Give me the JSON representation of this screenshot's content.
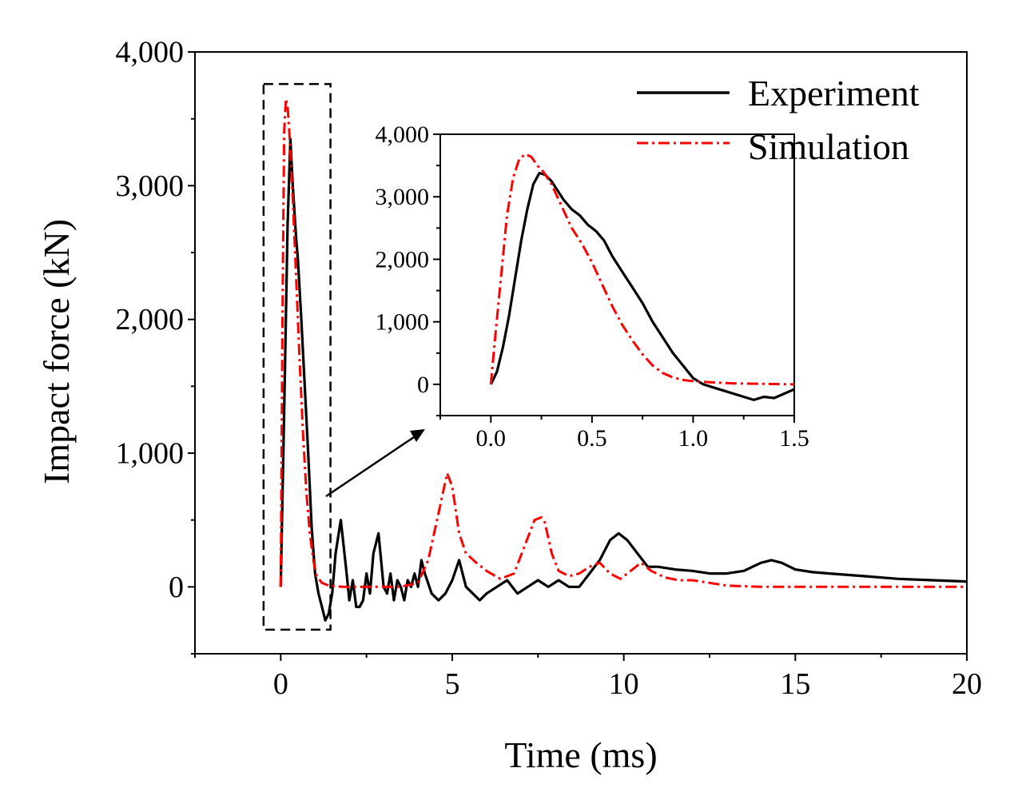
{
  "chart_data": {
    "type": "line",
    "title": "",
    "xlabel": "Time (ms)",
    "ylabel": "Impact force (kN)",
    "xlim": [
      -2.5,
      20
    ],
    "ylim": [
      -500,
      4000
    ],
    "x_ticks": [
      0,
      5,
      10,
      15,
      20
    ],
    "x_tick_labels": [
      "0",
      "5",
      "10",
      "15",
      "20"
    ],
    "y_ticks": [
      0,
      1000,
      2000,
      3000,
      4000
    ],
    "y_tick_labels": [
      "0",
      "1,000",
      "2,000",
      "3,000",
      "4,000"
    ],
    "legend": {
      "position": "top-right",
      "entries": [
        "Experiment",
        "Simulation"
      ]
    },
    "series": [
      {
        "name": "Experiment",
        "color": "#000000",
        "style": "solid",
        "x": [
          0,
          0.1,
          0.2,
          0.28,
          0.35,
          0.45,
          0.5,
          0.6,
          0.7,
          0.8,
          0.9,
          1.0,
          1.1,
          1.2,
          1.3,
          1.4,
          1.5,
          1.6,
          1.75,
          1.9,
          2.0,
          2.1,
          2.2,
          2.3,
          2.4,
          2.5,
          2.6,
          2.7,
          2.85,
          3.0,
          3.1,
          3.2,
          3.3,
          3.4,
          3.5,
          3.6,
          3.7,
          3.8,
          3.9,
          4.0,
          4.1,
          4.2,
          4.4,
          4.6,
          4.8,
          5.0,
          5.2,
          5.4,
          5.6,
          5.8,
          6.0,
          6.3,
          6.6,
          6.9,
          7.2,
          7.5,
          7.8,
          8.1,
          8.4,
          8.7,
          9.0,
          9.3,
          9.6,
          9.85,
          10.1,
          10.4,
          10.7,
          11.0,
          11.5,
          12.0,
          12.5,
          13.0,
          13.5,
          14.0,
          14.3,
          14.6,
          15.0,
          15.5,
          16.0,
          17.0,
          18.0,
          19.0,
          20.0
        ],
        "y": [
          0,
          1300,
          2700,
          3350,
          3000,
          2600,
          2450,
          2000,
          1500,
          1000,
          450,
          100,
          -50,
          -150,
          -250,
          -200,
          -50,
          250,
          500,
          150,
          -100,
          50,
          -150,
          -150,
          -100,
          100,
          -50,
          250,
          400,
          0,
          -50,
          100,
          -100,
          50,
          0,
          -100,
          50,
          0,
          100,
          0,
          200,
          100,
          -50,
          -100,
          -50,
          50,
          200,
          0,
          -50,
          -100,
          -50,
          0,
          50,
          -50,
          0,
          50,
          0,
          50,
          0,
          0,
          100,
          200,
          350,
          400,
          350,
          250,
          150,
          150,
          130,
          120,
          100,
          100,
          120,
          180,
          200,
          180,
          130,
          110,
          100,
          80,
          60,
          50,
          40
        ]
      },
      {
        "name": "Simulation",
        "color": "#ff0000",
        "style": "dash-dot",
        "x": [
          0,
          0.05,
          0.1,
          0.15,
          0.2,
          0.25,
          0.35,
          0.45,
          0.55,
          0.65,
          0.75,
          0.85,
          0.95,
          1.05,
          1.2,
          1.4,
          1.6,
          1.8,
          2.0,
          2.5,
          3.0,
          3.5,
          4.0,
          4.3,
          4.6,
          4.85,
          5.0,
          5.2,
          5.4,
          5.7,
          6.0,
          6.4,
          6.8,
          7.1,
          7.4,
          7.6,
          7.7,
          7.9,
          8.1,
          8.4,
          8.7,
          9.0,
          9.3,
          9.6,
          9.9,
          10.2,
          10.5,
          10.8,
          11.2,
          11.6,
          12.0,
          12.5,
          13.0,
          13.5,
          14.0,
          15.0,
          17.0,
          20.0
        ],
        "y": [
          0,
          2000,
          3400,
          3650,
          3600,
          3400,
          2900,
          2300,
          1700,
          1150,
          700,
          400,
          200,
          80,
          30,
          10,
          5,
          0,
          0,
          0,
          0,
          0,
          30,
          200,
          550,
          850,
          750,
          400,
          250,
          180,
          120,
          60,
          100,
          300,
          500,
          520,
          480,
          250,
          120,
          80,
          100,
          150,
          180,
          100,
          60,
          120,
          180,
          120,
          70,
          50,
          50,
          30,
          10,
          5,
          0,
          0,
          0,
          0
        ]
      }
    ],
    "inset": {
      "xlim": [
        -0.25,
        1.5
      ],
      "ylim": [
        -500,
        4000
      ],
      "x_ticks": [
        0.0,
        0.5,
        1.0,
        1.5
      ],
      "x_tick_labels": [
        "0.0",
        "0.5",
        "1.0",
        "1.5"
      ],
      "y_ticks": [
        0,
        1000,
        2000,
        3000,
        4000
      ],
      "y_tick_labels": [
        "0",
        "1,000",
        "2,000",
        "3,000",
        "4,000"
      ],
      "zoom_region_x": [
        -0.5,
        1.45
      ],
      "zoom_region_y": [
        -320,
        3760
      ],
      "series": [
        {
          "name": "Experiment",
          "color": "#000000",
          "style": "solid",
          "x": [
            0,
            0.03,
            0.06,
            0.09,
            0.12,
            0.15,
            0.18,
            0.21,
            0.24,
            0.27,
            0.3,
            0.33,
            0.36,
            0.4,
            0.44,
            0.48,
            0.5,
            0.52,
            0.56,
            0.6,
            0.65,
            0.7,
            0.75,
            0.8,
            0.85,
            0.9,
            0.95,
            1.0,
            1.05,
            1.1,
            1.15,
            1.2,
            1.25,
            1.3,
            1.35,
            1.4,
            1.45,
            1.5
          ],
          "y": [
            0,
            200,
            600,
            1100,
            1700,
            2300,
            2800,
            3200,
            3380,
            3350,
            3250,
            3100,
            2950,
            2800,
            2700,
            2550,
            2500,
            2450,
            2300,
            2050,
            1800,
            1550,
            1300,
            1000,
            750,
            500,
            300,
            100,
            0,
            -50,
            -100,
            -150,
            -200,
            -250,
            -200,
            -220,
            -150,
            -80
          ]
        },
        {
          "name": "Simulation",
          "color": "#ff0000",
          "style": "dash-dot",
          "x": [
            0,
            0.02,
            0.05,
            0.08,
            0.11,
            0.14,
            0.17,
            0.2,
            0.23,
            0.26,
            0.3,
            0.35,
            0.4,
            0.45,
            0.5,
            0.55,
            0.6,
            0.65,
            0.7,
            0.75,
            0.8,
            0.85,
            0.9,
            0.95,
            1.0,
            1.1,
            1.2,
            1.3,
            1.4,
            1.5
          ],
          "y": [
            0,
            700,
            1700,
            2700,
            3300,
            3600,
            3680,
            3640,
            3500,
            3400,
            3200,
            2850,
            2500,
            2250,
            1950,
            1600,
            1250,
            950,
            700,
            480,
            300,
            180,
            110,
            70,
            50,
            30,
            15,
            10,
            5,
            0
          ]
        }
      ]
    }
  }
}
